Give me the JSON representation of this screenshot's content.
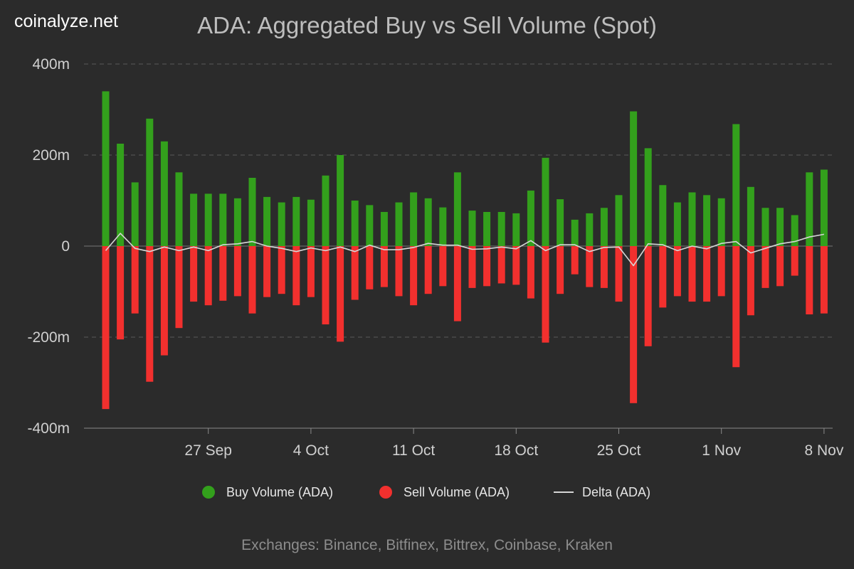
{
  "brand": "coinalyze.net",
  "footer": "Exchanges: Binance, Bitfinex, Bittrex, Coinbase, Kraken",
  "colors": {
    "background": "#2b2b2b",
    "buy": "#33a01c",
    "sell": "#f2302e",
    "delta": "#d6d6d6",
    "grid": "#5a5a5a",
    "axis": "#8a8a8a"
  },
  "chart_data": {
    "type": "bar",
    "title": "ADA: Aggregated Buy vs Sell Volume (Spot)",
    "y_unit": "m",
    "ylim": [
      -400,
      400
    ],
    "yticks": [
      400,
      200,
      0,
      -200,
      -400
    ],
    "ytick_labels": [
      "400m",
      "200m",
      "0",
      "-200m",
      "-400m"
    ],
    "x_start_day": -7,
    "xticks": [
      {
        "day": 0,
        "label": "27 Sep"
      },
      {
        "day": 7,
        "label": "4 Oct"
      },
      {
        "day": 14,
        "label": "11 Oct"
      },
      {
        "day": 21,
        "label": "18 Oct"
      },
      {
        "day": 28,
        "label": "25 Oct"
      },
      {
        "day": 35,
        "label": "1 Nov"
      },
      {
        "day": 42,
        "label": "8 Nov"
      }
    ],
    "grid": true,
    "legend_position": "bottom-center",
    "series": [
      {
        "name": "Buy Volume (ADA)",
        "kind": "bar",
        "values": [
          340,
          225,
          140,
          280,
          230,
          162,
          115,
          115,
          115,
          105,
          150,
          108,
          96,
          108,
          102,
          155,
          200,
          100,
          90,
          75,
          96,
          118,
          105,
          85,
          162,
          78,
          75,
          75,
          72,
          122,
          194,
          103,
          58,
          72,
          84,
          112,
          296,
          215,
          134,
          96,
          118,
          112,
          105,
          268,
          130,
          84,
          84,
          68,
          162,
          168
        ]
      },
      {
        "name": "Sell Volume (ADA)",
        "kind": "bar",
        "values": [
          -358,
          -205,
          -148,
          -298,
          -240,
          -180,
          -122,
          -130,
          -120,
          -110,
          -148,
          -112,
          -105,
          -130,
          -112,
          -172,
          -210,
          -118,
          -95,
          -90,
          -110,
          -130,
          -105,
          -88,
          -165,
          -92,
          -88,
          -82,
          -85,
          -115,
          -212,
          -105,
          -62,
          -90,
          -92,
          -122,
          -345,
          -220,
          -135,
          -110,
          -122,
          -122,
          -110,
          -266,
          -152,
          -92,
          -88,
          -65,
          -150,
          -148
        ]
      },
      {
        "name": "Delta (ADA)",
        "kind": "line",
        "values": [
          -10,
          28,
          -5,
          -12,
          -2,
          -10,
          -2,
          -10,
          3,
          5,
          10,
          0,
          -5,
          -12,
          -4,
          -10,
          -2,
          -12,
          2,
          -8,
          -8,
          -3,
          6,
          2,
          2,
          -7,
          -6,
          -2,
          -6,
          12,
          -10,
          3,
          3,
          -12,
          -3,
          -2,
          -43,
          5,
          3,
          -10,
          0,
          -6,
          6,
          10,
          -15,
          -5,
          5,
          10,
          20,
          26
        ]
      }
    ]
  }
}
